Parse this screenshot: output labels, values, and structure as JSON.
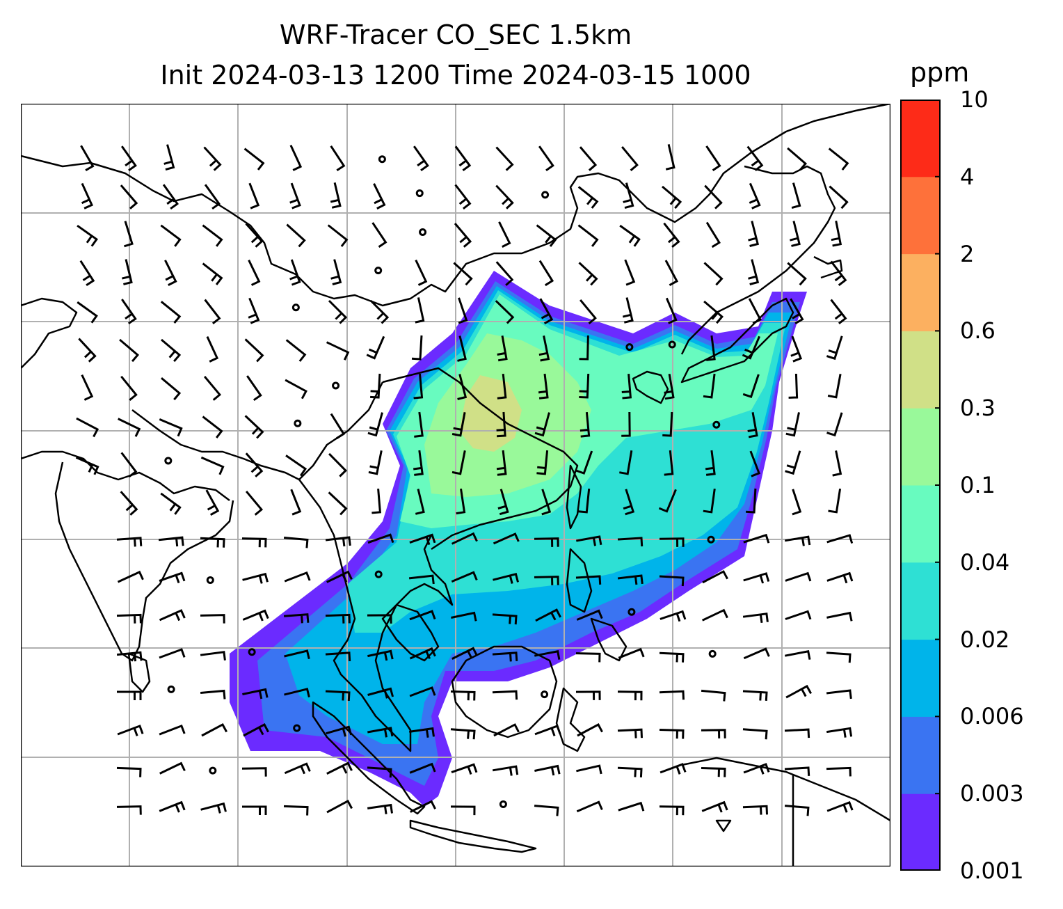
{
  "title": {
    "line1": "WRF-Tracer CO_SEC 1.5km",
    "line2": "Init 2024-03-13 1200 Time 2024-03-15 1000"
  },
  "colorbar": {
    "units": "ppm",
    "levels": [
      "0.001",
      "0.003",
      "0.006",
      "0.02",
      "0.04",
      "0.1",
      "0.3",
      "0.6",
      "2",
      "4",
      "10"
    ],
    "colors": [
      "#6b2bff",
      "#3a74f2",
      "#00b4ea",
      "#2ee0d4",
      "#68fbbf",
      "#99f99a",
      "#d0e087",
      "#fcb060",
      "#fe713a",
      "#fd2b18"
    ]
  },
  "map": {
    "background": "#ffffff",
    "gridline_color": "#b0b0b0",
    "coastline_color": "#000000"
  }
}
